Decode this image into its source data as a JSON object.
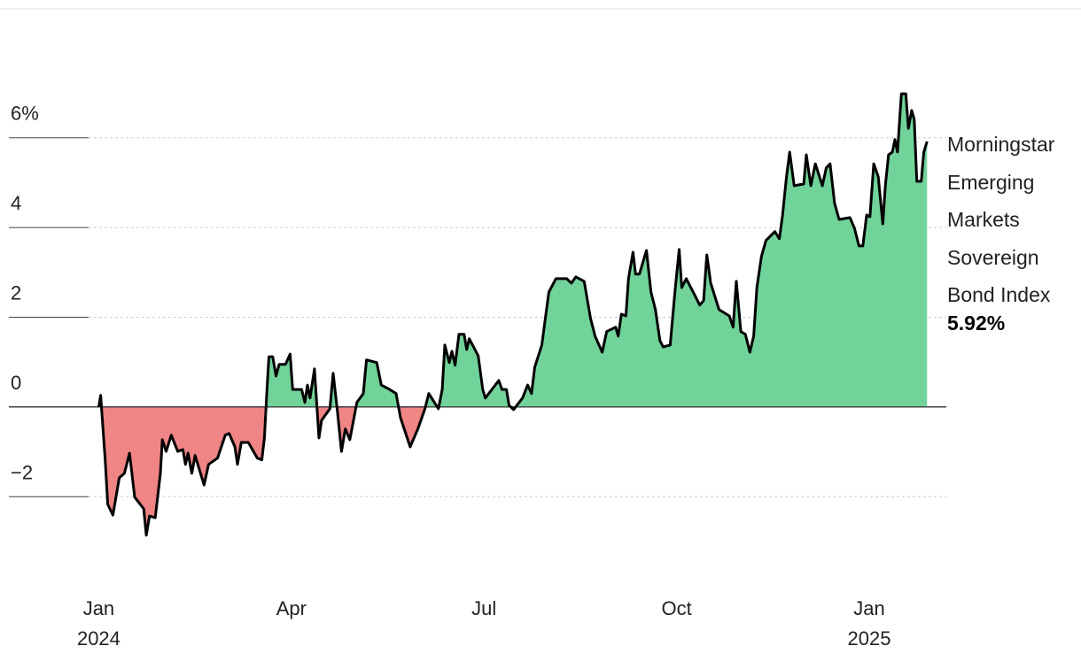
{
  "chart_data": {
    "type": "line",
    "xlim": [
      -1.4,
      13.2
    ],
    "xticks": [
      {
        "value": 0,
        "label": "Jan\n2024"
      },
      {
        "value": 3,
        "label": "Apr"
      },
      {
        "value": 6,
        "label": "Jul"
      },
      {
        "value": 9,
        "label": "Oct"
      },
      {
        "value": 12,
        "label": "Jan\n2025"
      }
    ],
    "ylim": [
      -3,
      7
    ],
    "yticks": [
      {
        "value": -2,
        "label": "−2"
      },
      0,
      2,
      4,
      {
        "value": 6,
        "label": "6%"
      }
    ],
    "grid": true,
    "fill_colors": {
      "positive": "#72d39a",
      "negative": "#f08585"
    },
    "x": [
      0,
      0.03,
      0.1,
      0.14,
      0.22,
      0.32,
      0.4,
      0.48,
      0.56,
      0.7,
      0.74,
      0.79,
      0.88,
      0.96,
      0.99,
      1.05,
      1.13,
      1.23,
      1.31,
      1.35,
      1.39,
      1.45,
      1.5,
      1.64,
      1.71,
      1.85,
      1.97,
      2.03,
      2.12,
      2.16,
      2.22,
      2.33,
      2.47,
      2.54,
      2.58,
      2.62,
      2.65,
      2.71,
      2.76,
      2.81,
      2.91,
      2.98,
      3.02,
      3.16,
      3.21,
      3.25,
      3.29,
      3.36,
      3.43,
      3.47,
      3.6,
      3.65,
      3.71,
      3.78,
      3.84,
      3.91,
      4.02,
      4.12,
      4.17,
      4.33,
      4.4,
      4.53,
      4.63,
      4.7,
      4.85,
      4.97,
      5.08,
      5.14,
      5.29,
      5.35,
      5.39,
      5.46,
      5.5,
      5.55,
      5.61,
      5.69,
      5.73,
      5.77,
      5.91,
      5.98,
      6.02,
      6.23,
      6.28,
      6.35,
      6.39,
      6.46,
      6.6,
      6.68,
      6.74,
      6.79,
      6.9,
      7.01,
      7.12,
      7.29,
      7.36,
      7.43,
      7.56,
      7.66,
      7.73,
      7.84,
      7.91,
      8.05,
      8.09,
      8.14,
      8.21,
      8.25,
      8.32,
      8.36,
      8.42,
      8.53,
      8.6,
      8.67,
      8.74,
      8.79,
      8.9,
      8.97,
      9.04,
      9.08,
      9.15,
      9.29,
      9.36,
      9.42,
      9.47,
      9.53,
      9.66,
      9.82,
      9.88,
      9.93,
      10.0,
      10.07,
      10.14,
      10.2,
      10.25,
      10.32,
      10.39,
      10.53,
      10.6,
      10.65,
      10.71,
      10.76,
      10.83,
      10.98,
      11.02,
      11.09,
      11.16,
      11.27,
      11.33,
      11.39,
      11.46,
      11.53,
      11.7,
      11.77,
      11.84,
      11.9,
      11.96,
      12.01,
      12.07,
      12.14,
      12.21,
      12.25,
      12.3,
      12.36,
      12.4,
      12.44,
      12.5,
      12.57,
      12.61,
      12.66,
      12.7,
      12.74,
      12.81,
      12.85,
      12.9
    ],
    "series": [
      {
        "name": "Morningstar Emerging Markets Sovereign Bond Index",
        "color": "#000000",
        "values": [
          0,
          0.26,
          -1.18,
          -2.17,
          -2.41,
          -1.58,
          -1.48,
          -1.03,
          -2.01,
          -2.27,
          -2.86,
          -2.43,
          -2.47,
          -1.48,
          -0.73,
          -0.99,
          -0.63,
          -0.99,
          -0.95,
          -1.28,
          -1.03,
          -1.48,
          -1.08,
          -1.74,
          -1.28,
          -1.14,
          -0.63,
          -0.59,
          -0.89,
          -1.28,
          -0.79,
          -0.79,
          -1.14,
          -1.18,
          -0.69,
          0.39,
          1.12,
          1.12,
          0.69,
          0.95,
          0.95,
          1.18,
          0.39,
          0.39,
          0.1,
          0.49,
          0.2,
          0.85,
          -0.69,
          -0.3,
          -0.04,
          0.75,
          0,
          -0.99,
          -0.49,
          -0.73,
          0.1,
          0.3,
          1.05,
          0.99,
          0.49,
          0.39,
          0.3,
          -0.24,
          -0.89,
          -0.49,
          -0.04,
          0.3,
          -0.04,
          0.39,
          1.38,
          0.99,
          1.24,
          0.93,
          1.62,
          1.62,
          1.28,
          1.52,
          1.14,
          0.39,
          0.2,
          0.59,
          0.39,
          0.39,
          0.04,
          -0.06,
          0.2,
          0.49,
          0.3,
          0.89,
          1.38,
          2.56,
          2.86,
          2.86,
          2.76,
          2.9,
          2.8,
          1.97,
          1.58,
          1.22,
          1.68,
          1.78,
          1.58,
          2.07,
          2.03,
          2.86,
          3.45,
          2.96,
          2.96,
          3.49,
          2.56,
          2.17,
          1.48,
          1.34,
          1.38,
          2.52,
          3.51,
          2.66,
          2.86,
          2.47,
          2.27,
          2.37,
          3.39,
          2.76,
          2.17,
          2.03,
          1.78,
          2.8,
          1.68,
          1.62,
          1.22,
          1.58,
          2.66,
          3.35,
          3.71,
          3.91,
          3.75,
          4.28,
          5.13,
          5.68,
          4.93,
          4.97,
          5.62,
          4.93,
          5.42,
          4.93,
          5.33,
          5.42,
          4.54,
          4.18,
          4.22,
          3.98,
          3.59,
          3.59,
          4.28,
          4.24,
          5.42,
          5.13,
          4.08,
          4.93,
          5.62,
          5.68,
          5.96,
          5.68,
          6.98,
          6.98,
          6.21,
          6.61,
          6.41,
          5.03,
          5.03,
          5.68,
          5.92
        ],
        "value_labels": [
          null,
          null,
          null,
          null,
          null,
          null,
          null,
          null,
          null,
          null,
          null,
          null,
          null,
          null,
          null,
          null,
          null,
          null,
          null,
          null,
          null,
          null,
          null,
          null,
          null,
          null,
          null,
          null,
          null,
          null,
          null,
          null,
          null,
          null,
          null,
          null,
          null,
          null,
          null,
          null,
          null,
          null,
          null,
          null,
          null,
          null,
          null,
          null,
          null,
          null,
          null,
          null,
          null,
          null,
          null,
          null,
          null,
          null,
          null,
          null,
          null,
          null,
          null,
          null,
          null,
          null,
          null,
          null,
          null,
          null,
          null,
          null,
          null,
          null,
          null,
          null,
          null,
          null,
          null,
          null,
          null,
          null,
          null,
          null,
          null,
          null,
          null,
          null,
          null,
          null,
          null,
          null,
          null,
          null,
          null,
          null,
          null,
          null,
          null,
          null,
          null,
          null,
          null,
          null,
          null,
          null,
          null,
          null,
          null,
          null,
          null,
          null,
          null,
          null,
          null,
          null,
          null,
          null,
          null,
          null,
          null,
          null,
          null,
          null,
          null,
          null,
          null,
          null,
          null,
          null,
          null,
          null,
          null,
          null,
          null,
          null,
          null,
          null,
          null,
          null,
          null,
          null,
          null,
          null,
          null,
          null,
          null,
          null,
          null,
          null,
          null,
          null,
          null,
          null,
          null,
          null,
          null,
          null,
          null,
          null,
          null,
          null,
          null,
          null,
          null,
          null,
          null,
          null,
          null,
          null,
          null,
          null,
          "5.92%"
        ]
      }
    ]
  }
}
